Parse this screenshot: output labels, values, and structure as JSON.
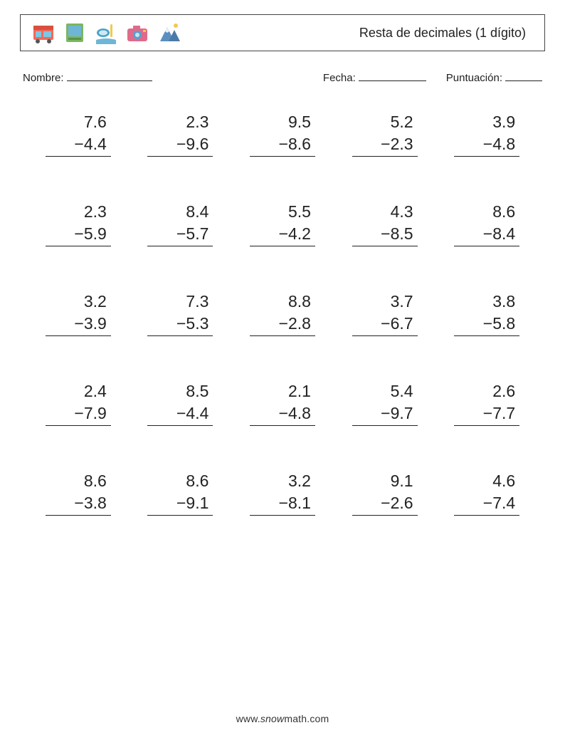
{
  "header": {
    "title": "Resta de decimales (1 dígito)",
    "icons": [
      {
        "name": "bus-icon",
        "colors": {
          "body": "#ef6a5a",
          "window": "#7ec8e3",
          "accent": "#d94f3f"
        }
      },
      {
        "name": "polaroid-icon",
        "colors": {
          "frame": "#7bb661",
          "inner": "#6fb6d6",
          "bar": "#5a9448"
        }
      },
      {
        "name": "snorkel-icon",
        "colors": {
          "mask": "#4aa3c7",
          "tube": "#f2c94c",
          "water": "#6fb6d6"
        }
      },
      {
        "name": "camera-icon",
        "colors": {
          "body": "#e06a8a",
          "lens": "#5aa0d0",
          "flash": "#f2c94c"
        }
      },
      {
        "name": "mountain-icon",
        "colors": {
          "peak": "#5a8fbf",
          "snow": "#e8f0f5",
          "sun": "#f2c94c"
        }
      }
    ]
  },
  "meta": {
    "name_label": "Nombre:",
    "date_label": "Fecha:",
    "score_label": "Puntuación:"
  },
  "worksheet": {
    "type": "subtraction-vertical",
    "background_color": "#ffffff",
    "text_color": "#222222",
    "rule_color": "#222222",
    "font_size_pt": 17,
    "columns": 5,
    "rows": 5,
    "problems": [
      {
        "a": "7.6",
        "b": "4.4"
      },
      {
        "a": "2.3",
        "b": "9.6"
      },
      {
        "a": "9.5",
        "b": "8.6"
      },
      {
        "a": "5.2",
        "b": "2.3"
      },
      {
        "a": "3.9",
        "b": "4.8"
      },
      {
        "a": "2.3",
        "b": "5.9"
      },
      {
        "a": "8.4",
        "b": "5.7"
      },
      {
        "a": "5.5",
        "b": "4.2"
      },
      {
        "a": "4.3",
        "b": "8.5"
      },
      {
        "a": "8.6",
        "b": "8.4"
      },
      {
        "a": "3.2",
        "b": "3.9"
      },
      {
        "a": "7.3",
        "b": "5.3"
      },
      {
        "a": "8.8",
        "b": "2.8"
      },
      {
        "a": "3.7",
        "b": "6.7"
      },
      {
        "a": "3.8",
        "b": "5.8"
      },
      {
        "a": "2.4",
        "b": "7.9"
      },
      {
        "a": "8.5",
        "b": "4.4"
      },
      {
        "a": "2.1",
        "b": "4.8"
      },
      {
        "a": "5.4",
        "b": "9.7"
      },
      {
        "a": "2.6",
        "b": "7.7"
      },
      {
        "a": "8.6",
        "b": "3.8"
      },
      {
        "a": "8.6",
        "b": "9.1"
      },
      {
        "a": "3.2",
        "b": "8.1"
      },
      {
        "a": "9.1",
        "b": "2.6"
      },
      {
        "a": "4.6",
        "b": "7.4"
      }
    ]
  },
  "footer": {
    "prefix": "www.",
    "brand": "snow",
    "suffix": "math.com"
  }
}
